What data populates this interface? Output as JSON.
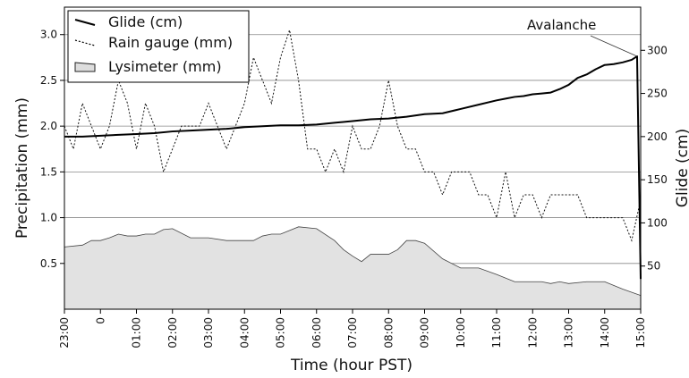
{
  "chart_data": {
    "type": "line",
    "xlabel": "Time (hour PST)",
    "ylabel_left": "Precipitation (mm)",
    "ylabel_right": "Glide (cm)",
    "x_ticks": [
      "23:00",
      "0",
      "01:00",
      "02:00",
      "03:00",
      "04:00",
      "05:00",
      "06:00",
      "07:00",
      "08:00",
      "09:00",
      "10:00",
      "11:00",
      "12:00",
      "13:00",
      "14:00",
      "15:00"
    ],
    "x_unit": "hours after 23:00",
    "x_range": [
      0,
      16
    ],
    "ylim_left": [
      0,
      3.3
    ],
    "ylim_right": [
      0,
      350
    ],
    "y_ticks_left": [
      "0.5",
      "1.0",
      "1.5",
      "2.0",
      "2.5",
      "3.0"
    ],
    "y_ticks_right": [
      "50",
      "100",
      "150",
      "200",
      "250",
      "300"
    ],
    "grid": "horizontal",
    "legend_position": "top-left",
    "annotation": {
      "text": "Avalanche",
      "x": 15.9,
      "y_right": 293
    },
    "series": [
      {
        "name": "Glide (cm)",
        "axis": "right",
        "style": "solid",
        "x": [
          0,
          0.5,
          1,
          1.5,
          2,
          2.5,
          3,
          3.5,
          4,
          4.5,
          5,
          5.5,
          6,
          6.5,
          7,
          7.5,
          8,
          8.5,
          9,
          9.5,
          10,
          10.5,
          11,
          11.5,
          12,
          12.25,
          12.5,
          12.75,
          13,
          13.25,
          13.5,
          13.75,
          14,
          14.25,
          14.5,
          14.75,
          15,
          15.25,
          15.5,
          15.75,
          15.9,
          16
        ],
        "values": [
          200,
          200,
          201,
          202,
          203,
          204,
          206,
          207,
          208,
          209,
          211,
          212,
          213,
          213,
          214,
          216,
          218,
          220,
          221,
          223,
          226,
          227,
          232,
          237,
          242,
          244,
          246,
          247,
          249,
          250,
          251,
          255,
          260,
          268,
          272,
          278,
          283,
          284,
          286,
          289,
          293,
          35
        ]
      },
      {
        "name": "Rain gauge (mm)",
        "axis": "left",
        "style": "dotted",
        "x": [
          0,
          0.25,
          0.5,
          0.75,
          1,
          1.25,
          1.5,
          1.75,
          2,
          2.25,
          2.5,
          2.75,
          3,
          3.25,
          3.5,
          3.75,
          4,
          4.25,
          4.5,
          4.75,
          5,
          5.25,
          5.5,
          5.75,
          6,
          6.25,
          6.5,
          6.75,
          7,
          7.25,
          7.5,
          7.75,
          8,
          8.25,
          8.5,
          8.75,
          9,
          9.25,
          9.5,
          9.75,
          10,
          10.25,
          10.5,
          10.75,
          11,
          11.25,
          11.5,
          11.75,
          12,
          12.25,
          12.5,
          12.75,
          13,
          13.25,
          13.5,
          13.75,
          14,
          14.25,
          14.5,
          14.75,
          15,
          15.25,
          15.5,
          15.75,
          16
        ],
        "values": [
          2.0,
          1.75,
          2.25,
          2.0,
          1.75,
          2.0,
          2.5,
          2.25,
          1.75,
          2.25,
          2.0,
          1.5,
          1.75,
          2.0,
          2.0,
          2.0,
          2.25,
          2.0,
          1.75,
          2.0,
          2.25,
          2.75,
          2.5,
          2.25,
          2.75,
          3.05,
          2.5,
          1.75,
          1.75,
          1.5,
          1.75,
          1.5,
          2.0,
          1.75,
          1.75,
          2.0,
          2.5,
          2.0,
          1.75,
          1.75,
          1.5,
          1.5,
          1.25,
          1.5,
          1.5,
          1.5,
          1.25,
          1.25,
          1.0,
          1.5,
          1.0,
          1.25,
          1.25,
          1.0,
          1.25,
          1.25,
          1.25,
          1.25,
          1.0,
          1.0,
          1.0,
          1.0,
          1.0,
          0.75,
          1.2
        ]
      },
      {
        "name": "Lysimeter (mm)",
        "axis": "left",
        "style": "area",
        "x": [
          0,
          0.5,
          0.75,
          1,
          1.25,
          1.5,
          1.75,
          2,
          2.25,
          2.5,
          2.75,
          3,
          3.5,
          4,
          4.5,
          5,
          5.25,
          5.5,
          5.75,
          6,
          6.5,
          7,
          7.5,
          7.75,
          8,
          8.25,
          8.5,
          8.75,
          9,
          9.25,
          9.5,
          9.75,
          10,
          10.5,
          11,
          11.5,
          12,
          12.5,
          13,
          13.25,
          13.5,
          13.75,
          14,
          14.5,
          15,
          15.5,
          16
        ],
        "values": [
          0.68,
          0.7,
          0.75,
          0.75,
          0.78,
          0.82,
          0.8,
          0.8,
          0.82,
          0.82,
          0.87,
          0.88,
          0.78,
          0.78,
          0.75,
          0.75,
          0.75,
          0.8,
          0.82,
          0.82,
          0.9,
          0.88,
          0.75,
          0.65,
          0.58,
          0.52,
          0.6,
          0.6,
          0.6,
          0.65,
          0.75,
          0.75,
          0.72,
          0.55,
          0.45,
          0.45,
          0.38,
          0.3,
          0.3,
          0.3,
          0.28,
          0.3,
          0.28,
          0.3,
          0.3,
          0.22,
          0.15
        ]
      }
    ]
  }
}
